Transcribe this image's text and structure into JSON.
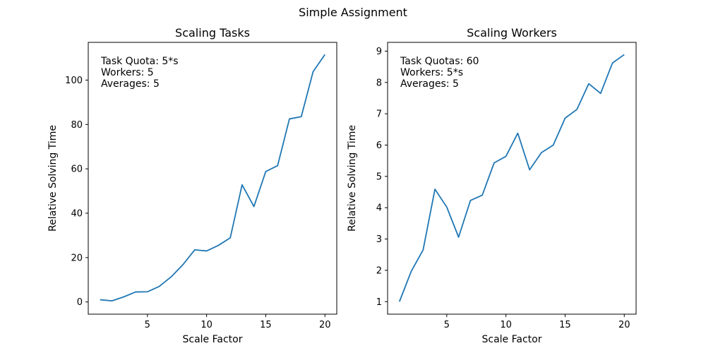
{
  "figure": {
    "suptitle": "Simple Assignment"
  },
  "colors": {
    "line": "#1f77b4",
    "axes": "#000000",
    "background": "#ffffff"
  },
  "chart_data": [
    {
      "type": "line",
      "title": "Scaling Tasks",
      "xlabel": "Scale Factor",
      "ylabel": "Relative Solving Time",
      "xlim": [
        0,
        21
      ],
      "ylim": [
        -5.5,
        117
      ],
      "xticks": [
        5,
        10,
        15,
        20
      ],
      "yticks": [
        0,
        20,
        40,
        60,
        80,
        100
      ],
      "grid": false,
      "annotation": [
        "Task Quota: 5*s",
        "Workers: 5",
        "Averages: 5"
      ],
      "x": [
        1,
        2,
        3,
        4,
        5,
        6,
        7,
        8,
        9,
        10,
        11,
        12,
        13,
        14,
        15,
        16,
        17,
        18,
        19,
        20
      ],
      "series": [
        {
          "values": [
            1.0,
            0.5,
            2.3,
            4.5,
            4.6,
            7.0,
            11.3,
            16.8,
            23.5,
            23.0,
            25.5,
            28.9,
            52.8,
            43.0,
            58.8,
            61.4,
            82.5,
            83.5,
            103.8,
            111.5
          ]
        }
      ]
    },
    {
      "type": "line",
      "title": "Scaling Workers",
      "xlabel": "Scale Factor",
      "ylabel": "Relative Solving Time",
      "xlim": [
        0,
        21
      ],
      "ylim": [
        0.6,
        9.28
      ],
      "xticks": [
        5,
        10,
        15,
        20
      ],
      "yticks": [
        1,
        2,
        3,
        4,
        5,
        6,
        7,
        8,
        9
      ],
      "grid": false,
      "annotation": [
        "Task Quotas: 60",
        "Workers: 5*s",
        "Averages: 5"
      ],
      "x": [
        1,
        2,
        3,
        4,
        5,
        6,
        7,
        8,
        9,
        10,
        11,
        12,
        13,
        14,
        15,
        16,
        17,
        18,
        19,
        20
      ],
      "series": [
        {
          "values": [
            1.0,
            1.97,
            2.65,
            4.59,
            4.02,
            3.06,
            4.23,
            4.4,
            5.43,
            5.64,
            6.38,
            5.21,
            5.76,
            6.0,
            6.86,
            7.14,
            7.96,
            7.65,
            8.62,
            8.89
          ]
        }
      ]
    }
  ]
}
